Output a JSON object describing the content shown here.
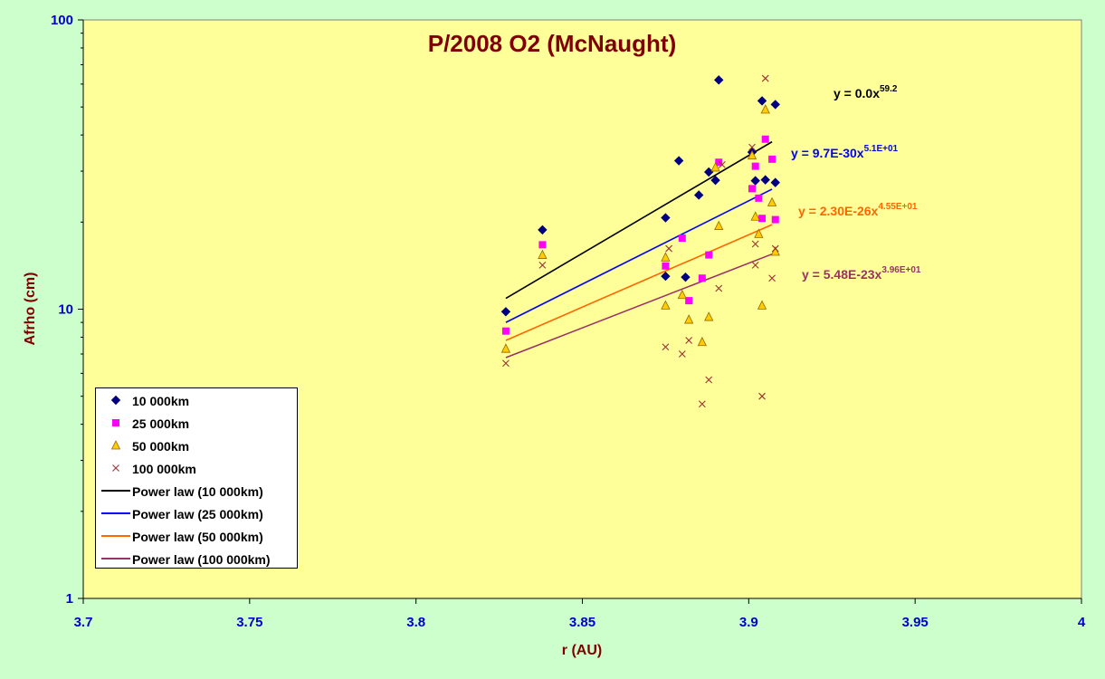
{
  "chart_data": {
    "type": "scatter",
    "title": "P/2008 O2 (McNaught)",
    "xlabel": "r (AU)",
    "ylabel": "Afrho (cm)",
    "xlim": [
      3.7,
      4.0
    ],
    "ylim": [
      1,
      100
    ],
    "yscale": "log",
    "x_ticks": [
      "3.7",
      "3.75",
      "3.8",
      "3.85",
      "3.9",
      "3.95",
      "4"
    ],
    "y_ticks": [
      "1",
      "10",
      "100"
    ],
    "legend_position": "bottom-left",
    "grid": false,
    "series": [
      {
        "name": "10 000km",
        "marker": "diamond",
        "color": "#000080",
        "x": [
          3.827,
          3.838,
          3.875,
          3.875,
          3.879,
          3.881,
          3.885,
          3.888,
          3.89,
          3.891,
          3.901,
          3.902,
          3.904,
          3.905,
          3.908,
          3.908
        ],
        "y": [
          9.8,
          18.8,
          20.7,
          13.0,
          32.6,
          12.9,
          24.8,
          29.8,
          27.9,
          62.0,
          34.9,
          27.8,
          52.5,
          28.0,
          51.0,
          27.4
        ]
      },
      {
        "name": "25 000km",
        "marker": "square",
        "color": "#ff00ff",
        "x": [
          3.827,
          3.838,
          3.875,
          3.88,
          3.882,
          3.886,
          3.888,
          3.891,
          3.901,
          3.902,
          3.903,
          3.904,
          3.905,
          3.907,
          3.908
        ],
        "y": [
          8.4,
          16.7,
          14.1,
          17.6,
          10.7,
          12.8,
          15.4,
          32.2,
          26.1,
          31.2,
          24.2,
          20.6,
          38.7,
          33.0,
          20.4
        ]
      },
      {
        "name": "50 000km",
        "marker": "triangle",
        "color": "#ffcc00",
        "x": [
          3.827,
          3.838,
          3.875,
          3.875,
          3.88,
          3.882,
          3.886,
          3.888,
          3.89,
          3.891,
          3.901,
          3.902,
          3.903,
          3.904,
          3.905,
          3.907,
          3.908
        ],
        "y": [
          7.3,
          15.4,
          15.1,
          10.3,
          11.2,
          9.2,
          7.7,
          9.4,
          30.9,
          19.4,
          34.0,
          20.9,
          18.2,
          10.3,
          49.0,
          23.4,
          15.8
        ]
      },
      {
        "name": "100 000km",
        "marker": "x",
        "color": "#993333",
        "x": [
          3.827,
          3.838,
          3.875,
          3.876,
          3.88,
          3.882,
          3.886,
          3.888,
          3.891,
          3.892,
          3.901,
          3.902,
          3.902,
          3.904,
          3.905,
          3.907,
          3.908
        ],
        "y": [
          6.5,
          14.2,
          7.4,
          16.2,
          7.0,
          7.8,
          4.7,
          5.7,
          11.8,
          31.6,
          36.3,
          16.8,
          14.2,
          5.0,
          62.8,
          12.8,
          16.2
        ]
      }
    ],
    "trendlines": [
      {
        "name": "Power law (10 000km)",
        "color": "#000000",
        "x": [
          3.827,
          3.907
        ],
        "y": [
          10.9,
          37.9
        ],
        "equation_base": "y = 0.0x",
        "equation_exp": "59.2",
        "equation_color": "#000000"
      },
      {
        "name": "Power law (25 000km)",
        "color": "#0000ff",
        "x": [
          3.827,
          3.907
        ],
        "y": [
          9.0,
          26.0
        ],
        "equation_base": "y = 9.7E-30x",
        "equation_exp": "5.1E+01",
        "equation_color": "#0000ff"
      },
      {
        "name": "Power law (50 000km)",
        "color": "#ff6600",
        "x": [
          3.827,
          3.907
        ],
        "y": [
          7.8,
          19.6
        ],
        "equation_base": "y = 2.30E-26x",
        "equation_exp": "4.55E+01",
        "equation_color": "#ff6600"
      },
      {
        "name": "Power law (100 000km)",
        "color": "#993366",
        "x": [
          3.827,
          3.907
        ],
        "y": [
          6.8,
          15.5
        ],
        "equation_base": "y = 5.48E-23x",
        "equation_exp": "3.96E+01",
        "equation_color": "#993366"
      }
    ]
  }
}
